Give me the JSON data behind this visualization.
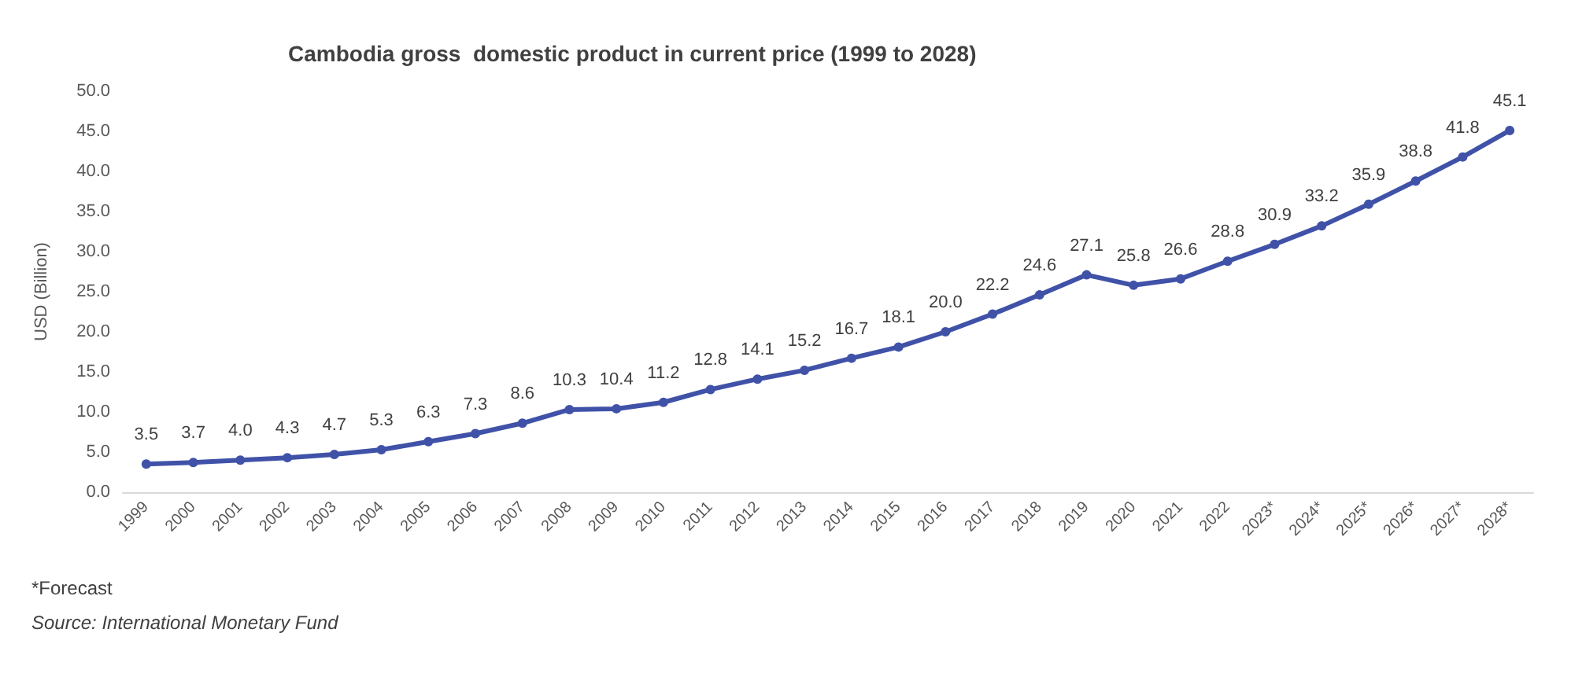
{
  "chart_data": {
    "type": "line",
    "title": "Cambodia gross  domestic product in current price (1999 to 2028)",
    "ylabel": "USD (Billion)",
    "categories": [
      "1999",
      "2000",
      "2001",
      "2002",
      "2003",
      "2004",
      "2005",
      "2006",
      "2007",
      "2008",
      "2009",
      "2010",
      "2011",
      "2012",
      "2013",
      "2014",
      "2015",
      "2016",
      "2017",
      "2018",
      "2019",
      "2020",
      "2021",
      "2022",
      "2023*",
      "2024*",
      "2025*",
      "2026*",
      "2027*",
      "2028*"
    ],
    "series": [
      {
        "color": "#4052a8",
        "values": [
          3.5,
          3.7,
          4.0,
          4.3,
          4.7,
          5.3,
          6.3,
          7.3,
          8.6,
          10.3,
          10.4,
          11.2,
          12.8,
          14.1,
          15.2,
          16.7,
          18.1,
          20.0,
          22.2,
          24.6,
          27.1,
          25.8,
          26.6,
          28.8,
          30.9,
          33.2,
          35.9,
          38.8,
          41.8,
          45.1
        ],
        "value_labels": [
          "3.5",
          "3.7",
          "4.0",
          "4.3",
          "4.7",
          "5.3",
          "6.3",
          "7.3",
          "8.6",
          "10.3",
          "10.4",
          "11.2",
          "12.8",
          "14.1",
          "15.2",
          "16.7",
          "18.1",
          "20.0",
          "22.2",
          "24.6",
          "27.1",
          "25.8",
          "26.6",
          "28.8",
          "30.9",
          "33.2",
          "35.9",
          "38.8",
          "41.8",
          "45.1"
        ]
      }
    ],
    "ylim": [
      0,
      50
    ],
    "yticks": [
      {
        "value": 0,
        "label": "0.0"
      },
      {
        "value": 5,
        "label": "5.0"
      },
      {
        "value": 10,
        "label": "10.0"
      },
      {
        "value": 15,
        "label": "15.0"
      },
      {
        "value": 20,
        "label": "20.0"
      },
      {
        "value": 25,
        "label": "25.0"
      },
      {
        "value": 30,
        "label": "30.0"
      },
      {
        "value": 35,
        "label": "35.0"
      },
      {
        "value": 40,
        "label": "40.0"
      },
      {
        "value": 45,
        "label": "45.0"
      },
      {
        "value": 50,
        "label": "50.0"
      }
    ],
    "marker": "circle",
    "line_style": "solid",
    "annotations": [
      "*Forecast",
      "Source: International Monetary Fund"
    ]
  }
}
